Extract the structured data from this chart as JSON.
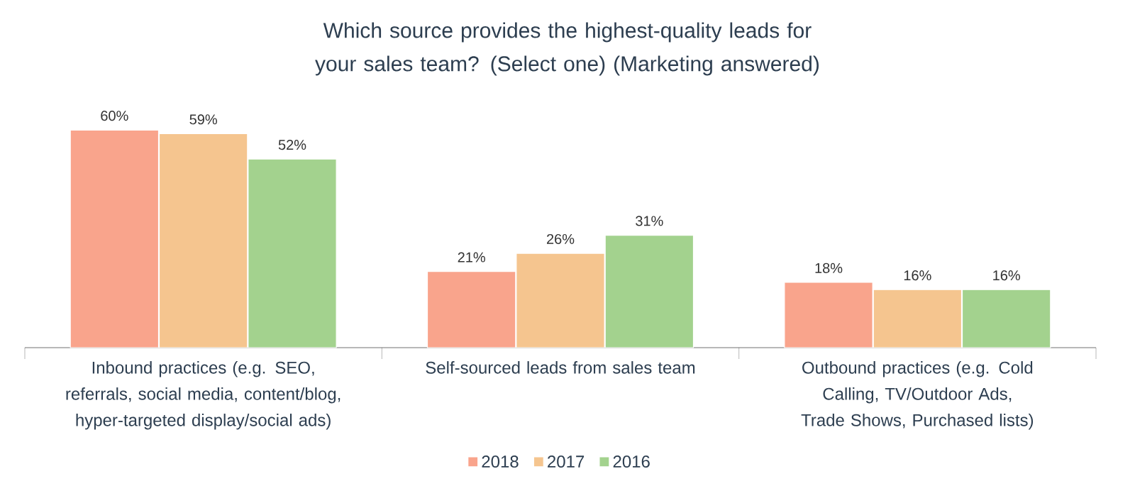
{
  "chart_data": {
    "type": "bar",
    "title": "Which source provides the highest-quality leads for your sales team? (Select one) (Marketing answered)",
    "categories": [
      "Inbound practices (e.g. SEO, referrals, social media, content/blog, hyper-targeted display/social ads)",
      "Self-sourced leads from sales team",
      "Outbound practices (e.g. Cold Calling, TV/Outdoor Ads, Trade Shows, Purchased lists)"
    ],
    "series": [
      {
        "name": "2018",
        "color": "#f9a48c",
        "values": [
          60,
          21,
          18
        ],
        "value_labels": [
          "60%",
          "21%",
          "18%"
        ]
      },
      {
        "name": "2017",
        "color": "#f5c58f",
        "values": [
          59,
          26,
          16
        ],
        "value_labels": [
          "59%",
          "26%",
          "16%"
        ]
      },
      {
        "name": "2016",
        "color": "#a3d28e",
        "values": [
          52,
          31,
          16
        ],
        "value_labels": [
          "52%",
          "31%",
          "16%"
        ]
      }
    ],
    "legend": "bottom"
  }
}
